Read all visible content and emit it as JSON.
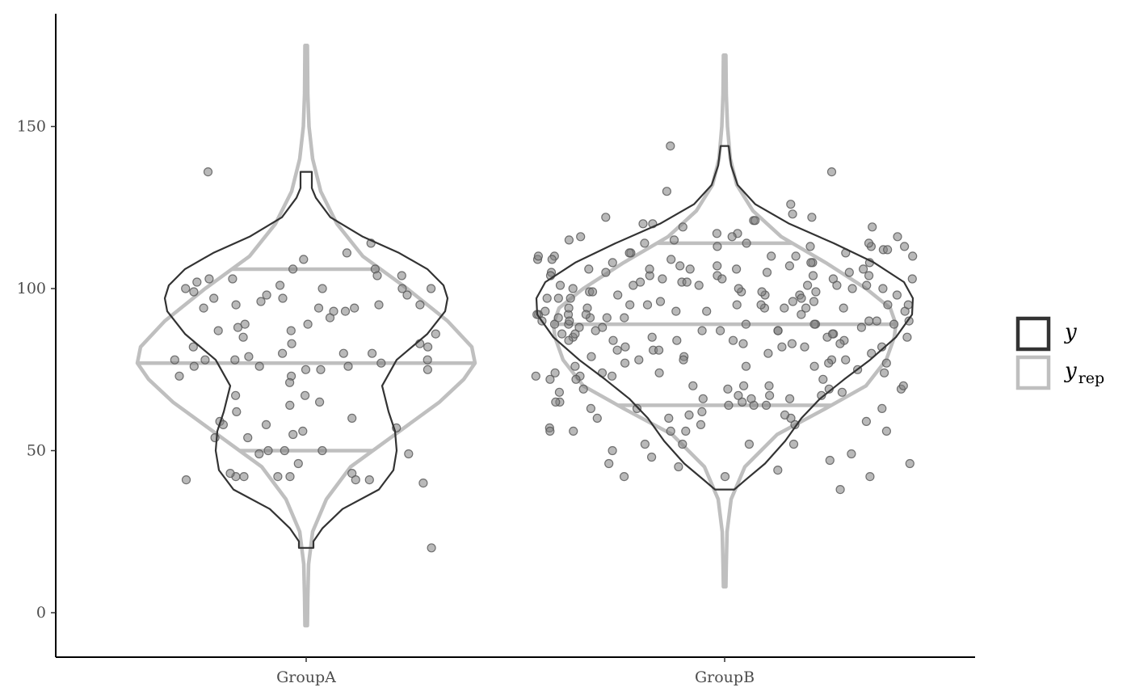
{
  "chart_data": {
    "type": "violin",
    "categories": [
      "GroupA",
      "GroupB"
    ],
    "ylim": [
      -14,
      178
    ],
    "y_ticks": [
      0,
      50,
      100,
      150
    ],
    "y_tick_labels": [
      "0",
      "50",
      "100",
      "150"
    ],
    "grid": false,
    "legend": {
      "placement": "right",
      "entries": [
        {
          "label": "y",
          "color": "#333333"
        },
        {
          "label": "y",
          "subscript": "rep",
          "color": "#bfbfbf"
        }
      ]
    },
    "colors": {
      "y": "#333333",
      "y_rep": "#bfbfbf",
      "points": "#808080"
    },
    "y_rep_quantiles": {
      "GroupA": [
        50,
        77,
        106
      ],
      "GroupB": [
        64,
        89,
        114
      ]
    },
    "y_range": {
      "GroupA": [
        20,
        136
      ],
      "GroupB": [
        38,
        144
      ]
    },
    "y_rep_range": {
      "GroupA": [
        -4,
        175
      ],
      "GroupB": [
        8,
        172
      ]
    },
    "points": {
      "GroupA": [
        109,
        100,
        94,
        88,
        87,
        89,
        99,
        98,
        91,
        80,
        79,
        77,
        76,
        82,
        75,
        67,
        60,
        54,
        50,
        56,
        59,
        41,
        40,
        20,
        78,
        73,
        75,
        58,
        50,
        65,
        43,
        54,
        87,
        86,
        83,
        78,
        94,
        96,
        97,
        95,
        98,
        58,
        76,
        83,
        62,
        49,
        46,
        42,
        93,
        101,
        106,
        111,
        103,
        103,
        106,
        102,
        100,
        97,
        94,
        93,
        78,
        76,
        71,
        67,
        64,
        57,
        55,
        42,
        85,
        95,
        114,
        136,
        89,
        104,
        104,
        100,
        95,
        100,
        80,
        80,
        75,
        73,
        49,
        50,
        43,
        42,
        41,
        41,
        42,
        82,
        78
      ],
      "GroupB": [
        122,
        121,
        119,
        117,
        116,
        113,
        111,
        110,
        106,
        104,
        103,
        101,
        100,
        99,
        98,
        97,
        96,
        95,
        94,
        93,
        92,
        91,
        89,
        87,
        85,
        84,
        82,
        80,
        79,
        78,
        74,
        70,
        69,
        67,
        64,
        64,
        56,
        52,
        50,
        126,
        113,
        109,
        106,
        105,
        103,
        102,
        100,
        98,
        94,
        92,
        91,
        90,
        89,
        87,
        86,
        84,
        77,
        73,
        69,
        66,
        65,
        63,
        60,
        38,
        144,
        130,
        120,
        116,
        114,
        113,
        111,
        110,
        108,
        107,
        105,
        104,
        103,
        101,
        99,
        97,
        95,
        94,
        94,
        92,
        90,
        89,
        87,
        86,
        84,
        82,
        78,
        76,
        74,
        72,
        69,
        68,
        61,
        61,
        56,
        52,
        46,
        121,
        115,
        114,
        112,
        110,
        108,
        106,
        104,
        101,
        100,
        98,
        96,
        95,
        94,
        93,
        91,
        89,
        88,
        86,
        85,
        83,
        81,
        79,
        76,
        74,
        72,
        70,
        67,
        65,
        63,
        60,
        58,
        52,
        46,
        44,
        120,
        117,
        115,
        113,
        110,
        108,
        106,
        104,
        102,
        101,
        99,
        97,
        95,
        93,
        92,
        90,
        88,
        87,
        85,
        83,
        81,
        78,
        75,
        74,
        69,
        66,
        64,
        60,
        58,
        57,
        49,
        48,
        42,
        119,
        116,
        114,
        111,
        109,
        107,
        105,
        103,
        101,
        99,
        98,
        96,
        94,
        92,
        90,
        89,
        87,
        85,
        83,
        82,
        78,
        76,
        73,
        70,
        67,
        65,
        59,
        56,
        52,
        47,
        45,
        42,
        123,
        122,
        112,
        110,
        108,
        107,
        106,
        104,
        102,
        100,
        99,
        97,
        95,
        93,
        91,
        89,
        88,
        86,
        84,
        82,
        80,
        77,
        73,
        70,
        68,
        66,
        63,
        62,
        56,
        56,
        42,
        136,
        109,
        105,
        101,
        95,
        90,
        84,
        81,
        77,
        72
      ]
    }
  }
}
